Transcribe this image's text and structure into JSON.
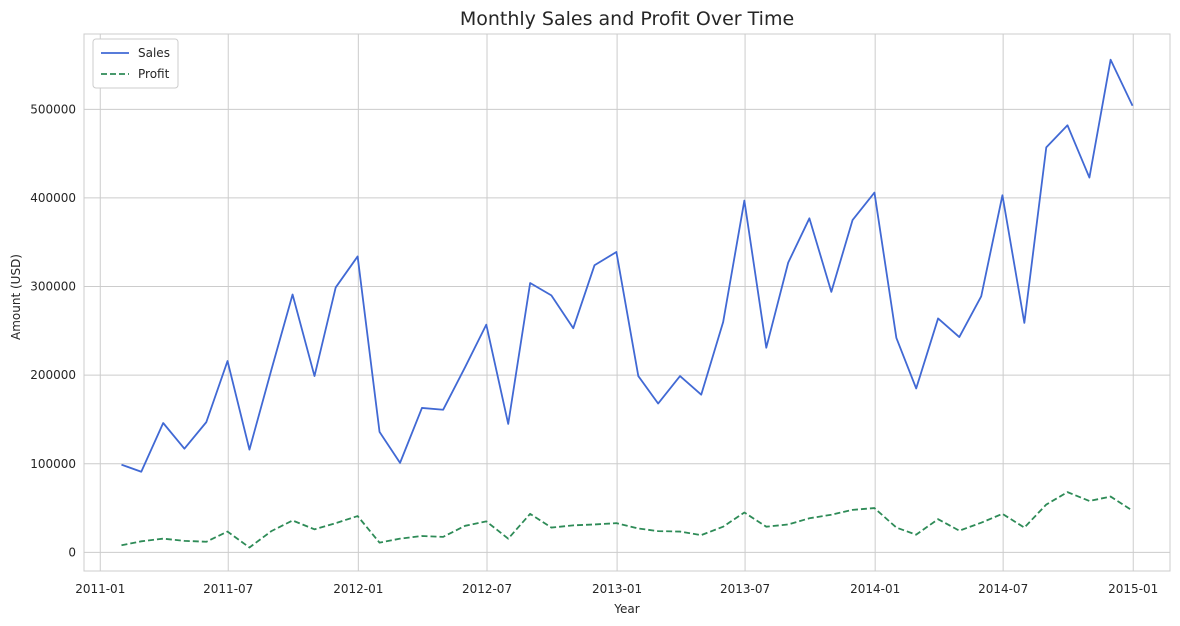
{
  "chart_data": {
    "type": "line",
    "title": "Monthly Sales and Profit Over Time",
    "xlabel": "Year",
    "ylabel": "Amount (USD)",
    "x": [
      "2011-01-31",
      "2011-02-28",
      "2011-03-31",
      "2011-04-30",
      "2011-05-31",
      "2011-06-30",
      "2011-07-31",
      "2011-08-31",
      "2011-09-30",
      "2011-10-31",
      "2011-11-30",
      "2011-12-31",
      "2012-01-31",
      "2012-02-29",
      "2012-03-31",
      "2012-04-30",
      "2012-05-31",
      "2012-06-30",
      "2012-07-31",
      "2012-08-31",
      "2012-09-30",
      "2012-10-31",
      "2012-11-30",
      "2012-12-31",
      "2013-01-31",
      "2013-02-28",
      "2013-03-31",
      "2013-04-30",
      "2013-05-31",
      "2013-06-30",
      "2013-07-31",
      "2013-08-31",
      "2013-09-30",
      "2013-10-31",
      "2013-11-30",
      "2013-12-31",
      "2014-01-31",
      "2014-02-28",
      "2014-03-31",
      "2014-04-30",
      "2014-05-31",
      "2014-06-30",
      "2014-07-31",
      "2014-08-31",
      "2014-09-30",
      "2014-10-31",
      "2014-11-30",
      "2014-12-31"
    ],
    "series": [
      {
        "name": "Sales",
        "color": "#4169d4",
        "dash": "solid",
        "values": [
          99000,
          91000,
          146000,
          117000,
          147000,
          216000,
          116000,
          206000,
          291000,
          199000,
          299000,
          334000,
          136000,
          101000,
          163000,
          161000,
          209000,
          257000,
          145000,
          304000,
          290000,
          253000,
          324000,
          339000,
          199000,
          168000,
          199000,
          178000,
          260000,
          397000,
          231000,
          327000,
          377000,
          294000,
          375000,
          406000,
          242000,
          185000,
          264000,
          243000,
          289000,
          403000,
          259000,
          457000,
          482000,
          423000,
          556000,
          504000
        ]
      },
      {
        "name": "Profit",
        "color": "#2e8b57",
        "dash": "dashed",
        "values": [
          8000,
          12500,
          15500,
          13000,
          12000,
          23500,
          5500,
          24000,
          36000,
          26000,
          33000,
          41000,
          11000,
          15500,
          18500,
          17500,
          30000,
          35000,
          15500,
          43500,
          28000,
          30500,
          31500,
          33000,
          27000,
          24000,
          23500,
          19500,
          29000,
          45000,
          29000,
          31500,
          38500,
          42500,
          48000,
          50000,
          28000,
          20000,
          37500,
          24500,
          33500,
          43500,
          28000,
          54000,
          68000,
          58000,
          63000,
          47000
        ]
      }
    ],
    "xticks": [
      "2011-01",
      "2011-07",
      "2012-01",
      "2012-07",
      "2013-01",
      "2013-07",
      "2014-01",
      "2014-07",
      "2015-01"
    ],
    "yticks": [
      0,
      100000,
      200000,
      300000,
      400000,
      500000
    ],
    "xlim": [
      "2010-12-09",
      "2015-02-22"
    ],
    "ylim": [
      -21000,
      585000
    ],
    "grid": true,
    "legend_position": "top-left"
  }
}
